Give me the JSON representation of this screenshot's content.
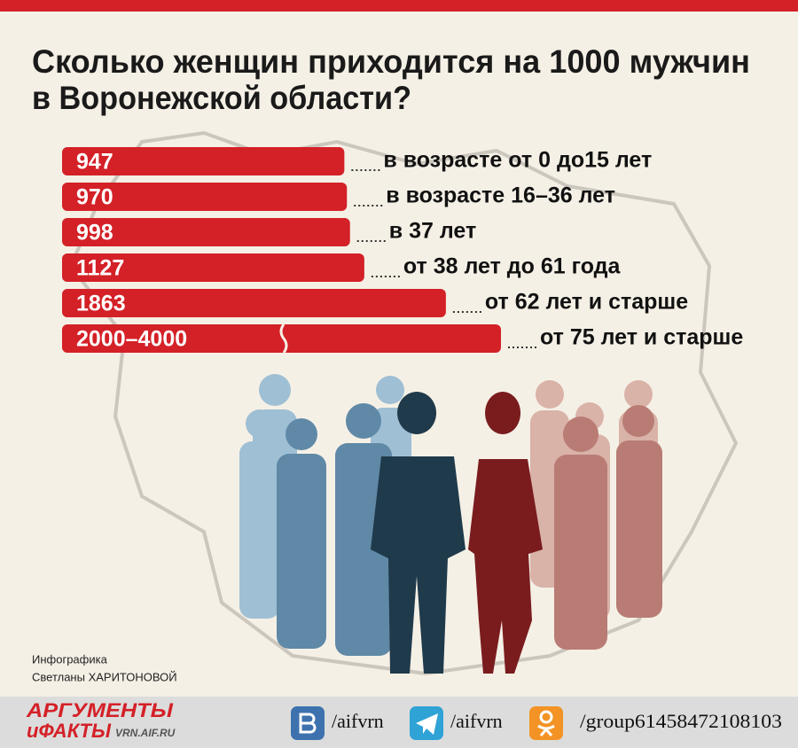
{
  "chart_data": {
    "type": "bar",
    "orientation": "horizontal",
    "title": [
      "Сколько женщин приходится на 1000 мужчин",
      "в Воронежской области?"
    ],
    "categories": [
      "в возрасте от 0 до15 лет",
      "в возрасте 16–36 лет",
      "в 37 лет",
      "от 38 лет до 61 года",
      "от 62 лет и старше",
      "от 75 лет и старше"
    ],
    "values": [
      947,
      970,
      998,
      1127,
      1863,
      2000
    ],
    "value_labels": [
      "947",
      "970",
      "998",
      "1127",
      "1863",
      "2000–4000"
    ],
    "color": "#d42027"
  },
  "credit": [
    "Инфографика",
    "Светланы ХАРИТОНОВОЙ"
  ],
  "footer": {
    "logo": [
      "АРГУМЕНТЫ",
      "иФАКТЫ"
    ],
    "site": "VRN.AIF.RU",
    "links": [
      "/aifvrn",
      "/aifvrn",
      "/group61458472108103"
    ]
  }
}
